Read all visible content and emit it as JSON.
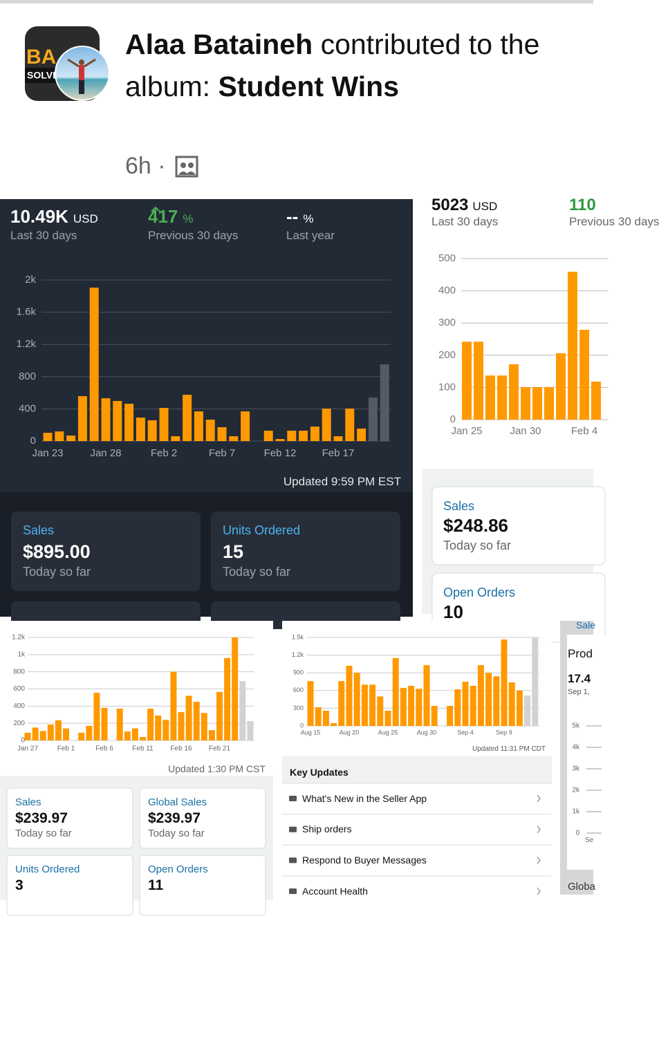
{
  "post": {
    "author": "Alaa Bataineh",
    "action": "contributed to the album:",
    "album": "Student Wins",
    "time": "6h",
    "separator": "·"
  },
  "avatar": {
    "logo": "BA",
    "label": "SOLVES"
  },
  "chart_data": [
    {
      "type": "bar",
      "categories": [
        "Jan 23",
        null,
        null,
        null,
        null,
        "Jan 28",
        null,
        null,
        null,
        null,
        "Feb 2",
        null,
        null,
        null,
        null,
        "Feb 7",
        null,
        null,
        null,
        null,
        "Feb 12",
        null,
        null,
        null,
        null,
        "Feb 17",
        null,
        null,
        null,
        null
      ],
      "values": [
        103,
        120,
        69,
        558,
        1905,
        532,
        498,
        464,
        292,
        258,
        412,
        60,
        575,
        369,
        266,
        172,
        60,
        369,
        0,
        129,
        26,
        129,
        129,
        180,
        403,
        60,
        403,
        155,
        541,
        953
      ],
      "color": "#ff9900",
      "colors": [
        "#ff9900",
        "#ff9900",
        "#ff9900",
        "#ff9900",
        "#ff9900",
        "#ff9900",
        "#ff9900",
        "#ff9900",
        "#ff9900",
        "#ff9900",
        "#ff9900",
        "#ff9900",
        "#ff9900",
        "#ff9900",
        "#ff9900",
        "#ff9900",
        "#ff9900",
        "#ff9900",
        "#ff9900",
        "#ff9900",
        "#ff9900",
        "#ff9900",
        "#ff9900",
        "#ff9900",
        "#ff9900",
        "#ff9900",
        "#ff9900",
        "#ff9900",
        "#555b63",
        "#555b63"
      ],
      "ylim": [
        0,
        2000
      ],
      "yticks": [
        0,
        400,
        800,
        {
          "value": 1200,
          "label": "1.2k"
        },
        {
          "value": 1600,
          "label": "1.6k"
        },
        {
          "value": 2000,
          "label": "2k"
        }
      ],
      "grid": true
    },
    {
      "type": "bar",
      "categories": [
        "Jan 25",
        null,
        null,
        null,
        null,
        "Jan 30",
        null,
        null,
        null,
        null,
        "Feb 4",
        null
      ],
      "values": [
        242,
        242,
        137,
        137,
        172,
        101,
        101,
        101,
        206,
        459,
        279,
        118
      ],
      "color": "#ff9900",
      "ylim": [
        0,
        500
      ],
      "yticks": [
        0,
        100,
        200,
        300,
        400,
        500
      ],
      "grid": true
    },
    {
      "type": "bar",
      "categories": [
        "Jan 27",
        null,
        null,
        null,
        null,
        "Feb 1",
        null,
        null,
        null,
        null,
        "Feb 6",
        null,
        null,
        null,
        null,
        "Feb 11",
        null,
        null,
        null,
        null,
        "Feb 16",
        null,
        null,
        null,
        null,
        "Feb 21",
        null,
        null,
        null,
        null
      ],
      "values": [
        90,
        150,
        110,
        185,
        235,
        140,
        0,
        90,
        170,
        555,
        380,
        0,
        370,
        105,
        140,
        40,
        370,
        290,
        240,
        800,
        330,
        520,
        450,
        320,
        120,
        565,
        960,
        1200,
        690,
        225
      ],
      "color": "#ff9900",
      "colors": [
        "#ff9900",
        "#ff9900",
        "#ff9900",
        "#ff9900",
        "#ff9900",
        "#ff9900",
        "#ff9900",
        "#ff9900",
        "#ff9900",
        "#ff9900",
        "#ff9900",
        "#ff9900",
        "#ff9900",
        "#ff9900",
        "#ff9900",
        "#ff9900",
        "#ff9900",
        "#ff9900",
        "#ff9900",
        "#ff9900",
        "#ff9900",
        "#ff9900",
        "#ff9900",
        "#ff9900",
        "#ff9900",
        "#ff9900",
        "#ff9900",
        "#ff9900",
        "#d2d2d2",
        "#d2d2d2"
      ],
      "ylim": [
        0,
        1200
      ],
      "yticks": [
        0,
        200,
        400,
        600,
        800,
        {
          "value": 1000,
          "label": "1k"
        },
        {
          "value": 1200,
          "label": "1.2k"
        }
      ],
      "grid": true
    },
    {
      "type": "bar",
      "categories": [
        "Aug 15",
        null,
        null,
        null,
        null,
        "Aug 20",
        null,
        null,
        null,
        null,
        "Aug 25",
        null,
        null,
        null,
        null,
        "Aug 30",
        null,
        null,
        null,
        null,
        "Sep 4",
        null,
        null,
        null,
        null,
        "Sep 9",
        null,
        null,
        null,
        null
      ],
      "values": [
        760,
        316,
        258,
        47,
        760,
        1020,
        900,
        700,
        700,
        500,
        258,
        1150,
        645,
        680,
        630,
        1030,
        340,
        0,
        340,
        620,
        750,
        680,
        1030,
        900,
        840,
        1465,
        740,
        600,
        515,
        1490
      ],
      "color": "#ff9900",
      "colors": [
        "#ff9900",
        "#ff9900",
        "#ff9900",
        "#ff9900",
        "#ff9900",
        "#ff9900",
        "#ff9900",
        "#ff9900",
        "#ff9900",
        "#ff9900",
        "#ff9900",
        "#ff9900",
        "#ff9900",
        "#ff9900",
        "#ff9900",
        "#ff9900",
        "#ff9900",
        "#ff9900",
        "#ff9900",
        "#ff9900",
        "#ff9900",
        "#ff9900",
        "#ff9900",
        "#ff9900",
        "#ff9900",
        "#ff9900",
        "#ff9900",
        "#ff9900",
        "#d2d2d2",
        "#d2d2d2"
      ],
      "ylim": [
        0,
        1500
      ],
      "yticks": [
        0,
        300,
        600,
        900,
        {
          "value": 1200,
          "label": "1.2k"
        },
        {
          "value": 1500,
          "label": "1.5k"
        }
      ],
      "grid": true
    },
    {
      "type": "line",
      "ylim": [
        0,
        5000
      ],
      "yticks": [
        0,
        {
          "value": 1000,
          "label": "1k"
        },
        {
          "value": 2000,
          "label": "2k"
        },
        {
          "value": 3000,
          "label": "3k"
        },
        {
          "value": 4000,
          "label": "4k"
        },
        {
          "value": 5000,
          "label": "5k"
        }
      ],
      "grid": true
    }
  ],
  "panels": [
    {
      "stats": [
        {
          "value": "10.49K",
          "unit": "USD",
          "caption": "Last 30 days"
        },
        {
          "value": "417",
          "unit": "%",
          "caption": "Previous 30 days"
        },
        {
          "value": "--",
          "unit": "%",
          "caption": "Last year"
        }
      ],
      "updated": "Updated 9:59 PM EST",
      "cards": [
        {
          "title": "Sales",
          "value": "$895.00",
          "caption": "Today so far"
        },
        {
          "title": "Units Ordered",
          "value": "15",
          "caption": "Today so far"
        }
      ]
    },
    {
      "stats": [
        {
          "value": "5023",
          "unit": "USD",
          "caption": "Last 30 days"
        },
        {
          "value": "110",
          "caption": "Previous 30 days"
        }
      ],
      "cards": [
        {
          "title": "Sales",
          "value": "$248.86",
          "caption": "Today so far"
        },
        {
          "title": "Open Orders",
          "value": "10"
        }
      ]
    },
    {
      "updated": "Updated 1:30 PM CST",
      "cards": [
        {
          "title": "Sales",
          "value": "$239.97",
          "caption": "Today so far"
        },
        {
          "title": "Global Sales",
          "value": "$239.97",
          "caption": "Today so far"
        },
        {
          "title": "Units Ordered",
          "value": "3"
        },
        {
          "title": "Open Orders",
          "value": "11"
        }
      ]
    },
    {
      "updated": "Updated 11:31 PM CDT",
      "section": "Key Updates",
      "items": [
        "What's New in the Seller App",
        "Ship orders",
        "Respond to Buyer Messages",
        "Account Health"
      ]
    },
    {
      "header": "Sale",
      "title": "Prod",
      "value": "17.4",
      "date": "Sep 1,",
      "axis_label": "Se",
      "footer": "Globa"
    }
  ]
}
